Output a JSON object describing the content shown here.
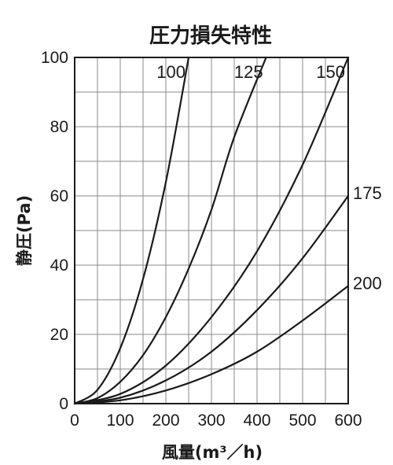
{
  "chart_data": {
    "type": "line",
    "title": "圧力損失特性",
    "xlabel": "風量(m³／h)",
    "ylabel": "静圧(Pa)",
    "xlim": [
      0,
      600
    ],
    "ylim": [
      0,
      100
    ],
    "x_ticks": [
      "0",
      "100",
      "200",
      "300",
      "400",
      "500",
      "600"
    ],
    "y_ticks": [
      "0",
      "20",
      "40",
      "60",
      "80",
      "100"
    ],
    "grid": true,
    "series": [
      {
        "name": "100",
        "points": [
          [
            0,
            0
          ],
          [
            50,
            4
          ],
          [
            100,
            16
          ],
          [
            150,
            36
          ],
          [
            200,
            64
          ],
          [
            250,
            100
          ]
        ]
      },
      {
        "name": "125",
        "points": [
          [
            0,
            0
          ],
          [
            50,
            1.6
          ],
          [
            100,
            6.3
          ],
          [
            150,
            14
          ],
          [
            200,
            25
          ],
          [
            250,
            39
          ],
          [
            300,
            56
          ],
          [
            350,
            77
          ],
          [
            420,
            100
          ]
        ]
      },
      {
        "name": "150",
        "points": [
          [
            0,
            0
          ],
          [
            100,
            2.8
          ],
          [
            200,
            11
          ],
          [
            300,
            25
          ],
          [
            400,
            44
          ],
          [
            500,
            69
          ],
          [
            600,
            100
          ]
        ]
      },
      {
        "name": "175",
        "points": [
          [
            0,
            0
          ],
          [
            100,
            1.7
          ],
          [
            200,
            6.7
          ],
          [
            300,
            15
          ],
          [
            400,
            27
          ],
          [
            500,
            42
          ],
          [
            600,
            60
          ]
        ]
      },
      {
        "name": "200",
        "points": [
          [
            0,
            0
          ],
          [
            100,
            0.95
          ],
          [
            200,
            3.8
          ],
          [
            300,
            8.5
          ],
          [
            400,
            15
          ],
          [
            500,
            24
          ],
          [
            600,
            34
          ]
        ]
      }
    ]
  }
}
